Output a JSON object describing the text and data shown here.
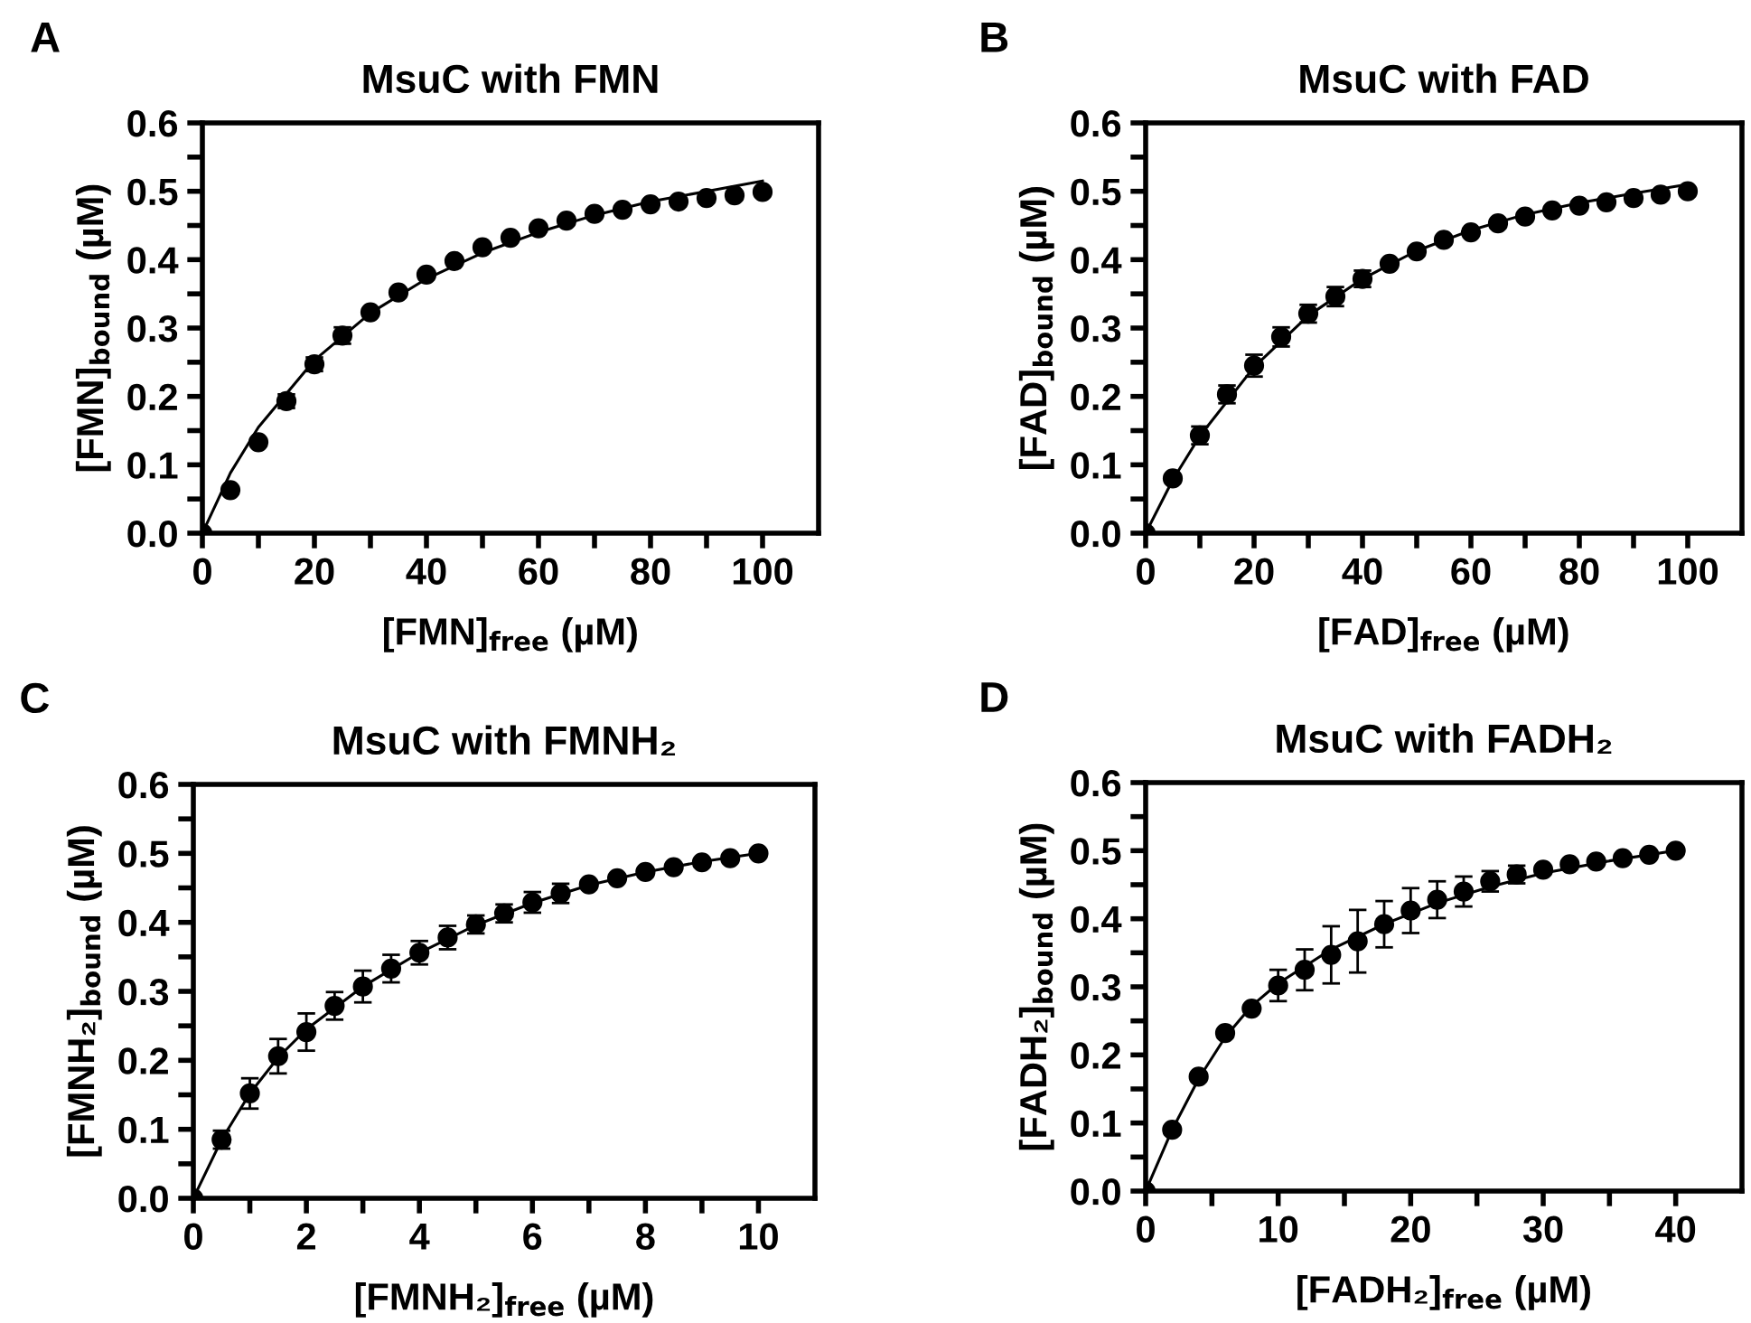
{
  "chart_data": [
    {
      "type": "scatter",
      "title": "MsuC with FMN",
      "xlabel": "[FMN]$_{free}$ (µM)",
      "ylabel": "[FMN]$_{bound}$ (µM)",
      "annotations": [
        "A"
      ],
      "marker": "circle",
      "grid": false,
      "legend": false,
      "xlim": [
        0,
        110
      ],
      "xticks": [
        0,
        {
          "value": 10,
          "label": null
        },
        20,
        {
          "value": 30,
          "label": null
        },
        40,
        {
          "value": 50,
          "label": null
        },
        60,
        {
          "value": 70,
          "label": null
        },
        80,
        {
          "value": 90,
          "label": null
        },
        100
      ],
      "ylim": [
        0,
        0.6
      ],
      "yticks": [
        {
          "value": 0,
          "label": "0.0"
        },
        {
          "value": 0.05,
          "label": null
        },
        0.1,
        {
          "value": 0.15,
          "label": null
        },
        0.2,
        {
          "value": 0.25,
          "label": null
        },
        0.3,
        {
          "value": 0.35,
          "label": null
        },
        0.4,
        {
          "value": 0.45,
          "label": null
        },
        0.5,
        {
          "value": 0.55,
          "label": null
        },
        0.6
      ],
      "series": [
        {
          "color": "#000000",
          "x": [
            0,
            5,
            10,
            15,
            20,
            25,
            30,
            35,
            40,
            45,
            50,
            55,
            60,
            65,
            70,
            75,
            80,
            85,
            90,
            95,
            100
          ],
          "values": [
            0,
            0.063,
            0.133,
            0.193,
            0.247,
            0.289,
            0.323,
            0.352,
            0.378,
            0.398,
            0.418,
            0.432,
            0.446,
            0.457,
            0.467,
            0.473,
            0.481,
            0.485,
            0.49,
            0.494,
            0.499
          ],
          "errors": [
            null,
            null,
            null,
            0.01,
            0.01,
            0.012,
            null,
            null,
            null,
            null,
            null,
            null,
            null,
            null,
            null,
            null,
            null,
            null,
            null,
            null,
            null
          ]
        },
        {
          "type": "line",
          "color": "#000000",
          "marker": "none",
          "x": [
            0,
            5,
            10,
            20,
            30,
            40,
            50,
            60,
            70,
            80,
            90,
            100
          ],
          "values": [
            0,
            0.088,
            0.155,
            0.253,
            0.322,
            0.372,
            0.41,
            0.44,
            0.465,
            0.485,
            0.5,
            0.515
          ]
        }
      ]
    },
    {
      "type": "scatter",
      "title": "MsuC with FAD",
      "xlabel": "[FAD]$_{free}$ (µM)",
      "ylabel": "[FAD]$_{bound}$ (µM)",
      "annotations": [
        "B"
      ],
      "marker": "circle",
      "grid": false,
      "legend": false,
      "xlim": [
        0,
        110
      ],
      "xticks": [
        0,
        {
          "value": 10,
          "label": null
        },
        20,
        {
          "value": 30,
          "label": null
        },
        40,
        {
          "value": 50,
          "label": null
        },
        60,
        {
          "value": 70,
          "label": null
        },
        80,
        {
          "value": 90,
          "label": null
        },
        100
      ],
      "ylim": [
        0,
        0.6
      ],
      "yticks": [
        {
          "value": 0,
          "label": "0.0"
        },
        {
          "value": 0.05,
          "label": null
        },
        0.1,
        {
          "value": 0.15,
          "label": null
        },
        0.2,
        {
          "value": 0.25,
          "label": null
        },
        0.3,
        {
          "value": 0.35,
          "label": null
        },
        0.4,
        {
          "value": 0.45,
          "label": null
        },
        0.5,
        {
          "value": 0.55,
          "label": null
        },
        0.6
      ],
      "series": [
        {
          "color": "#000000",
          "x": [
            0,
            5,
            10,
            15,
            20,
            25,
            30,
            35,
            40,
            45,
            50,
            55,
            60,
            65,
            70,
            75,
            80,
            85,
            90,
            95,
            100
          ],
          "values": [
            0,
            0.08,
            0.143,
            0.203,
            0.245,
            0.287,
            0.321,
            0.346,
            0.372,
            0.394,
            0.412,
            0.429,
            0.44,
            0.453,
            0.463,
            0.472,
            0.479,
            0.484,
            0.49,
            0.495,
            0.5
          ],
          "errors": [
            null,
            null,
            0.013,
            0.013,
            0.016,
            0.014,
            0.013,
            0.014,
            0.012,
            null,
            null,
            null,
            null,
            null,
            null,
            null,
            null,
            null,
            null,
            null,
            null
          ]
        },
        {
          "type": "line",
          "color": "#000000",
          "marker": "none",
          "x": [
            0,
            5,
            10,
            20,
            30,
            40,
            50,
            60,
            70,
            80,
            90,
            100
          ],
          "values": [
            0,
            0.078,
            0.142,
            0.243,
            0.318,
            0.372,
            0.413,
            0.443,
            0.466,
            0.483,
            0.497,
            0.51
          ]
        }
      ]
    },
    {
      "type": "scatter",
      "title": "MsuC with FMNH₂",
      "xlabel": "[FMNH₂]$_{free}$ (µM)",
      "ylabel": "[FMNH₂]$_{bound}$ (µM)",
      "annotations": [
        "C"
      ],
      "marker": "circle",
      "grid": false,
      "legend": false,
      "xlim": [
        0,
        11
      ],
      "xticks": [
        0,
        {
          "value": 1,
          "label": null
        },
        2,
        {
          "value": 3,
          "label": null
        },
        4,
        {
          "value": 5,
          "label": null
        },
        6,
        {
          "value": 7,
          "label": null
        },
        8,
        {
          "value": 9,
          "label": null
        },
        10
      ],
      "ylim": [
        0,
        0.6
      ],
      "yticks": [
        {
          "value": 0,
          "label": "0.0"
        },
        {
          "value": 0.05,
          "label": null
        },
        0.1,
        {
          "value": 0.15,
          "label": null
        },
        0.2,
        {
          "value": 0.25,
          "label": null
        },
        0.3,
        {
          "value": 0.35,
          "label": null
        },
        0.4,
        {
          "value": 0.45,
          "label": null
        },
        0.5,
        {
          "value": 0.55,
          "label": null
        },
        0.6
      ],
      "series": [
        {
          "color": "#000000",
          "x": [
            0,
            0.5,
            1,
            1.5,
            2,
            2.5,
            3,
            3.5,
            4,
            4.5,
            5,
            5.5,
            6,
            6.5,
            7,
            7.5,
            8,
            8.5,
            9,
            9.5,
            10
          ],
          "values": [
            0,
            0.085,
            0.152,
            0.206,
            0.241,
            0.279,
            0.307,
            0.333,
            0.356,
            0.378,
            0.397,
            0.413,
            0.429,
            0.442,
            0.455,
            0.464,
            0.473,
            0.48,
            0.487,
            0.493,
            0.5
          ],
          "errors": [
            null,
            0.013,
            0.022,
            0.025,
            0.027,
            0.02,
            0.023,
            0.02,
            0.017,
            0.017,
            0.013,
            0.013,
            0.015,
            0.014,
            null,
            null,
            null,
            null,
            null,
            null,
            null
          ]
        },
        {
          "type": "line",
          "color": "#000000",
          "marker": "none",
          "x": [
            0,
            0.5,
            1,
            1.5,
            2,
            3,
            4,
            5,
            6,
            7,
            8,
            9,
            10
          ],
          "values": [
            0,
            0.085,
            0.152,
            0.204,
            0.245,
            0.307,
            0.356,
            0.396,
            0.428,
            0.454,
            0.473,
            0.488,
            0.5
          ]
        }
      ]
    },
    {
      "type": "scatter",
      "title": "MsuC with FADH₂",
      "xlabel": "[FADH₂]$_{free}$ (µM)",
      "ylabel": "[FADH₂]$_{bound}$ (µM)",
      "annotations": [
        "D"
      ],
      "marker": "circle",
      "grid": false,
      "legend": false,
      "xlim": [
        0,
        45
      ],
      "xticks": [
        0,
        {
          "value": 5,
          "label": null
        },
        10,
        {
          "value": 15,
          "label": null
        },
        20,
        {
          "value": 25,
          "label": null
        },
        30,
        {
          "value": 35,
          "label": null
        },
        40
      ],
      "ylim": [
        0,
        0.6
      ],
      "yticks": [
        {
          "value": 0,
          "label": "0.0"
        },
        {
          "value": 0.05,
          "label": null
        },
        0.1,
        {
          "value": 0.15,
          "label": null
        },
        0.2,
        {
          "value": 0.25,
          "label": null
        },
        0.3,
        {
          "value": 0.35,
          "label": null
        },
        0.4,
        {
          "value": 0.45,
          "label": null
        },
        0.5,
        {
          "value": 0.55,
          "label": null
        },
        0.6
      ],
      "series": [
        {
          "color": "#000000",
          "x": [
            0,
            2,
            4,
            6,
            8,
            10,
            12,
            14,
            16,
            18,
            20,
            22,
            24,
            26,
            28,
            30,
            32,
            34,
            36,
            38,
            40
          ],
          "values": [
            0,
            0.09,
            0.168,
            0.232,
            0.268,
            0.302,
            0.325,
            0.347,
            0.367,
            0.392,
            0.412,
            0.428,
            0.44,
            0.455,
            0.465,
            0.472,
            0.48,
            0.484,
            0.489,
            0.494,
            0.5
          ],
          "errors": [
            null,
            null,
            null,
            null,
            null,
            0.023,
            0.03,
            0.042,
            0.046,
            0.034,
            0.033,
            0.027,
            0.022,
            0.015,
            0.013,
            null,
            null,
            null,
            null,
            null,
            null
          ]
        },
        {
          "type": "line",
          "color": "#000000",
          "marker": "none",
          "x": [
            0,
            2,
            4,
            6,
            8,
            10,
            14,
            18,
            22,
            26,
            30,
            35,
            40
          ],
          "values": [
            0,
            0.09,
            0.165,
            0.226,
            0.272,
            0.305,
            0.355,
            0.392,
            0.423,
            0.447,
            0.467,
            0.485,
            0.5
          ]
        }
      ]
    }
  ]
}
